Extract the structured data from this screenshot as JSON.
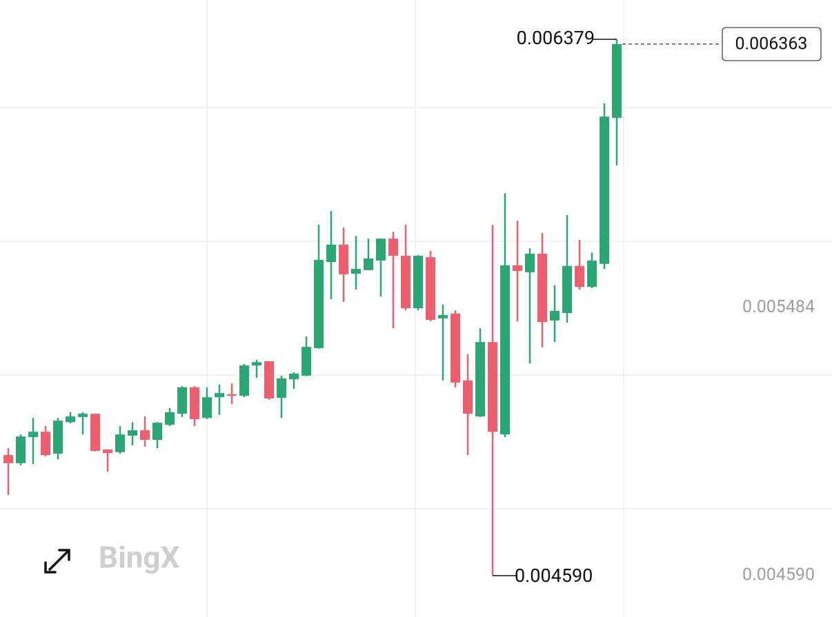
{
  "chart_data": {
    "type": "candlestick",
    "watermark": "BingX",
    "up_color": "#2aa775",
    "down_color": "#ef5f6d",
    "ylim": [
      0.004452,
      0.00651
    ],
    "yticks": [
      0.005484,
      {
        "value": 0.00459,
        "label": "0.004590"
      }
    ],
    "annotations": [
      {
        "value": 0.006379,
        "label": "0.006379"
      },
      {
        "value": 0.00459,
        "label": "0.004590"
      }
    ],
    "last_price": 0.006363,
    "open": [
      0.004992,
      0.004965,
      0.005052,
      0.00507,
      0.004997,
      0.005102,
      0.005119,
      0.00513,
      0.005011,
      0.005002,
      0.005057,
      0.005075,
      0.005043,
      0.005093,
      0.00513,
      0.005218,
      0.005116,
      0.005185,
      0.005195,
      0.00519,
      0.005291,
      0.005305,
      0.005183,
      0.005245,
      0.005257,
      0.005349,
      0.005636,
      0.005694,
      0.005597,
      0.005609,
      0.005641,
      0.005714,
      0.005657,
      0.005482,
      0.005652,
      0.005448,
      0.005464,
      0.005241,
      0.005121,
      0.005369,
      0.005061,
      0.005625,
      0.005602,
      0.005664,
      0.005441,
      0.005466,
      0.005623,
      0.005553,
      0.00563,
      0.006117
    ],
    "high": [
      0.005015,
      0.005061,
      0.005116,
      0.005089,
      0.005116,
      0.005135,
      0.005135,
      0.00513,
      0.005011,
      0.005089,
      0.005102,
      0.005121,
      0.005102,
      0.005149,
      0.005222,
      0.005222,
      0.005218,
      0.005227,
      0.005231,
      0.005296,
      0.00531,
      0.005305,
      0.005257,
      0.005268,
      0.005388,
      0.00576,
      0.005806,
      0.005751,
      0.005723,
      0.005714,
      0.005714,
      0.005737,
      0.00576,
      0.005659,
      0.005673,
      0.005494,
      0.005475,
      0.005328,
      0.005415,
      0.00576,
      0.005866,
      0.005774,
      0.005682,
      0.005733,
      0.005558,
      0.005793,
      0.00571,
      0.005668,
      0.006165,
      0.006379
    ],
    "low": [
      0.004859,
      0.004958,
      0.004962,
      0.004988,
      0.004978,
      0.005098,
      0.005061,
      0.005004,
      0.004937,
      0.004997,
      0.005025,
      0.00502,
      0.005015,
      0.005089,
      0.005119,
      0.005089,
      0.005112,
      0.005126,
      0.005162,
      0.005185,
      0.00525,
      0.005177,
      0.005116,
      0.005213,
      0.005255,
      0.005347,
      0.005512,
      0.005503,
      0.005544,
      0.005609,
      0.005521,
      0.005415,
      0.005475,
      0.005475,
      0.005438,
      0.005241,
      0.005218,
      0.004992,
      0.005119,
      0.00459,
      0.005052,
      0.005438,
      0.005298,
      0.005351,
      0.005369,
      0.005434,
      0.005544,
      0.005549,
      0.005613,
      0.005958
    ],
    "close": [
      0.004965,
      0.005054,
      0.00507,
      0.004992,
      0.005107,
      0.005121,
      0.00513,
      0.005006,
      0.004999,
      0.005061,
      0.005075,
      0.005043,
      0.0051,
      0.005135,
      0.005218,
      0.005112,
      0.005185,
      0.005199,
      0.00519,
      0.005291,
      0.005302,
      0.005181,
      0.005248,
      0.005264,
      0.005353,
      0.005643,
      0.005694,
      0.005595,
      0.005613,
      0.005648,
      0.005714,
      0.005657,
      0.005482,
      0.005657,
      0.005443,
      0.005459,
      0.005234,
      0.00513,
      0.005369,
      0.00507,
      0.005625,
      0.005606,
      0.005664,
      0.005436,
      0.005473,
      0.005623,
      0.005553,
      0.005641,
      0.006121,
      0.006363
    ]
  }
}
